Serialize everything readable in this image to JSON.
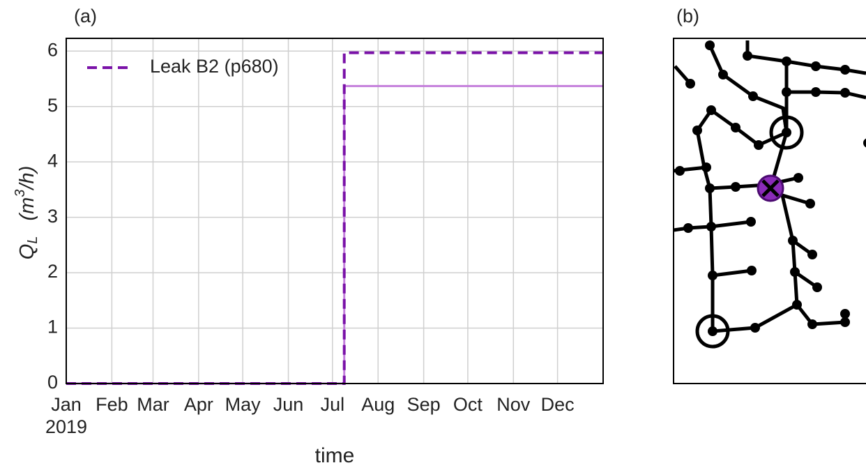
{
  "panel_labels": [
    "(a)",
    "(b)"
  ],
  "chart_data": {
    "type": "line",
    "xlabel": "time",
    "ylabel": {
      "symbol": "Q",
      "subscript": "L",
      "unit_open": "(m",
      "unit_power": "3",
      "unit_close": "/h)"
    },
    "x": [
      0,
      189,
      189,
      365
    ],
    "xlim": [
      0,
      365
    ],
    "xticks": [
      {
        "value": 0,
        "label": "Jan\n2019"
      },
      {
        "value": 31,
        "label": "Feb"
      },
      {
        "value": 59,
        "label": "Mar"
      },
      {
        "value": 90,
        "label": "Apr"
      },
      {
        "value": 120,
        "label": "May"
      },
      {
        "value": 151,
        "label": "Jun"
      },
      {
        "value": 181,
        "label": "Jul"
      },
      {
        "value": 212,
        "label": "Aug"
      },
      {
        "value": 243,
        "label": "Sep"
      },
      {
        "value": 273,
        "label": "Oct"
      },
      {
        "value": 304,
        "label": "Nov"
      },
      {
        "value": 334,
        "label": "Dec"
      }
    ],
    "ylim": [
      0,
      6.23
    ],
    "yticks": [
      0,
      1,
      2,
      3,
      4,
      5,
      6
    ],
    "grid": true,
    "legend": "upper left",
    "series": [
      {
        "color": "#c47fdc",
        "values": [
          0,
          0,
          5.37,
          5.37
        ]
      },
      {
        "name": "Leak B2 (p680)",
        "color": "#7a12a8",
        "dashed": true,
        "values": [
          0,
          0,
          5.97,
          5.97
        ]
      }
    ]
  }
}
